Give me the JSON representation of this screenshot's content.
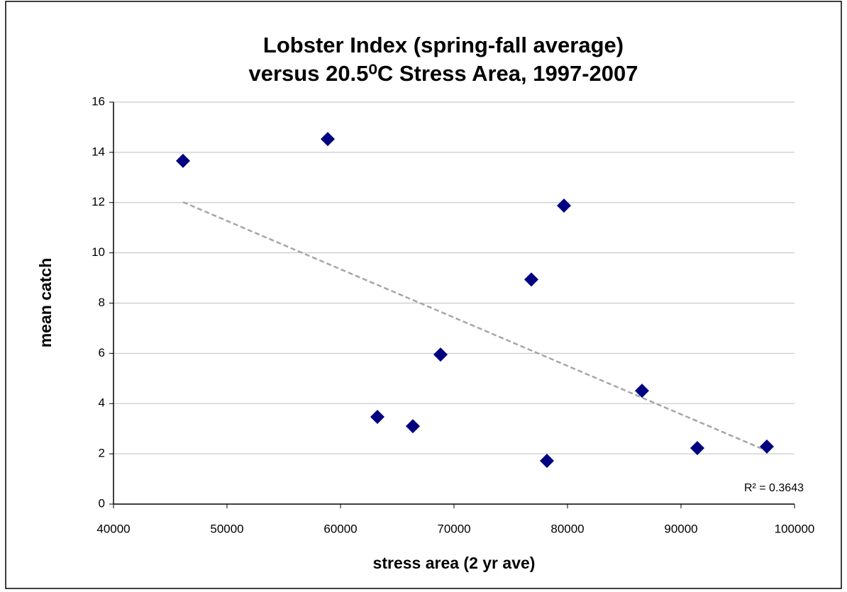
{
  "chart_data": {
    "type": "scatter",
    "title": [
      "Lobster Index (spring-fall average)",
      "versus  20.5⁰C Stress Area, 1997-2007"
    ],
    "xlabel": "stress area (2 yr ave)",
    "ylabel": "mean catch",
    "series": [
      {
        "name": "mean catch",
        "color": "#000080",
        "x": [
          46125,
          58875,
          63250,
          66375,
          68813,
          76813,
          78188,
          79688,
          86563,
          91438,
          97563
        ],
        "values": [
          13.66,
          14.53,
          3.47,
          3.1,
          5.95,
          8.94,
          1.72,
          11.88,
          4.51,
          2.23,
          2.29
        ]
      }
    ],
    "trendline": {
      "color": "#a6a6a6",
      "x": [
        46125,
        97563
      ],
      "values": [
        12.02,
        2.12
      ],
      "label": "R² = 0.3643"
    },
    "xlim": [
      40000,
      100000
    ],
    "xticks": [
      40000,
      50000,
      60000,
      70000,
      80000,
      90000,
      100000
    ],
    "ylim": [
      0,
      16
    ],
    "yticks": [
      0,
      2,
      4,
      6,
      8,
      10,
      12,
      14,
      16
    ],
    "grid": true
  }
}
